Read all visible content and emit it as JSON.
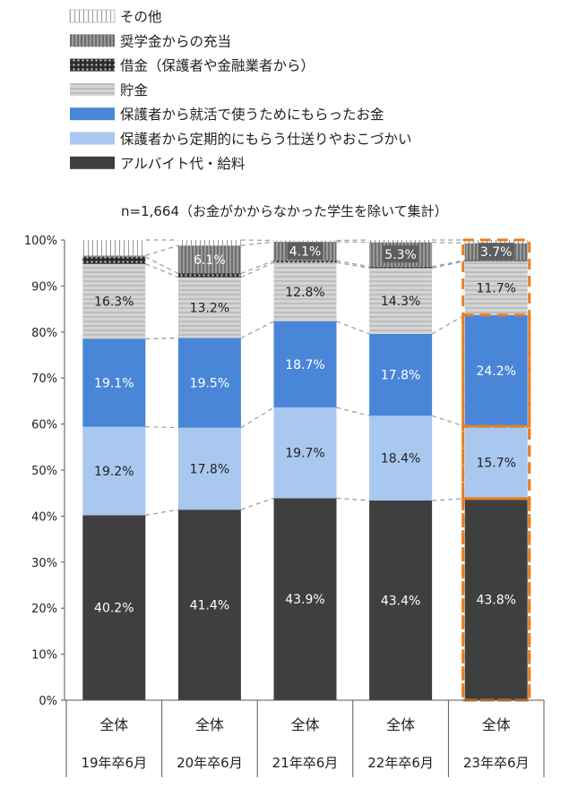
{
  "chart_data": {
    "type": "bar",
    "stacked": true,
    "note": "n=1,664（お金がかからなかった学生を除いて集計）",
    "categories": [
      {
        "top": "全体",
        "bottom": "19年卒6月"
      },
      {
        "top": "全体",
        "bottom": "20年卒6月"
      },
      {
        "top": "全体",
        "bottom": "21年卒6月"
      },
      {
        "top": "全体",
        "bottom": "22年卒6月"
      },
      {
        "top": "全体",
        "bottom": "23年卒6月"
      }
    ],
    "series": [
      {
        "name": "アルバイト代・給料",
        "color": "#3f3f3f",
        "label_color": "#ffffff",
        "values": [
          40.2,
          41.4,
          43.9,
          43.4,
          43.8
        ],
        "labels": [
          "40.2%",
          "41.4%",
          "43.9%",
          "43.4%",
          "43.8%"
        ]
      },
      {
        "name": "保護者から定期的にもらう仕送りやおこづかい",
        "color": "#a8c8f0",
        "label_color": "#222222",
        "values": [
          19.2,
          17.8,
          19.7,
          18.4,
          15.7
        ],
        "labels": [
          "19.2%",
          "17.8%",
          "19.7%",
          "18.4%",
          "15.7%"
        ]
      },
      {
        "name": "保護者から就活で使うためにもらったお金",
        "color": "#4a86d8",
        "label_color": "#ffffff",
        "values": [
          19.1,
          19.5,
          18.7,
          17.8,
          24.2
        ],
        "labels": [
          "19.1%",
          "19.5%",
          "18.7%",
          "17.8%",
          "24.2%"
        ]
      },
      {
        "name": "貯金",
        "color": "#d0d0d0",
        "pattern": "hstripes",
        "label_color": "#222222",
        "values": [
          16.3,
          13.2,
          12.8,
          14.3,
          11.7
        ],
        "labels": [
          "16.3%",
          "13.2%",
          "12.8%",
          "14.3%",
          "11.7%"
        ]
      },
      {
        "name": "借金（保護者や金融業者から）",
        "color": "#555555",
        "pattern": "dots",
        "label_color": "#ffffff",
        "values": [
          1.5,
          0.8,
          0.4,
          0.3,
          0.2
        ],
        "labels": [
          "",
          "",
          "",
          "",
          ""
        ]
      },
      {
        "name": "奨学金からの充当",
        "color": "#8c8c8c",
        "pattern": "vstripes",
        "label_color": "#ffffff",
        "values": [
          0.3,
          6.1,
          4.1,
          5.3,
          3.7
        ],
        "labels": [
          "",
          "6.1%",
          "4.1%",
          "5.3%",
          "3.7%"
        ]
      },
      {
        "name": "その他",
        "color": "#f2f2f2",
        "pattern": "vlines",
        "label_color": "#222222",
        "values": [
          3.4,
          1.2,
          0.3,
          0.5,
          0.7
        ],
        "labels": [
          "",
          "",
          "",
          "",
          ""
        ]
      }
    ],
    "legend_order": [
      6,
      5,
      4,
      3,
      2,
      1,
      0
    ],
    "legend_position": "top-left",
    "y_ticks": [
      "0%",
      "10%",
      "20%",
      "30%",
      "40%",
      "50%",
      "60%",
      "70%",
      "80%",
      "90%",
      "100%"
    ],
    "ylim": [
      0,
      100
    ],
    "highlight_category_index": 4,
    "highlight_color": "#e67e22",
    "connector_lines": "dashed",
    "grid": false
  }
}
